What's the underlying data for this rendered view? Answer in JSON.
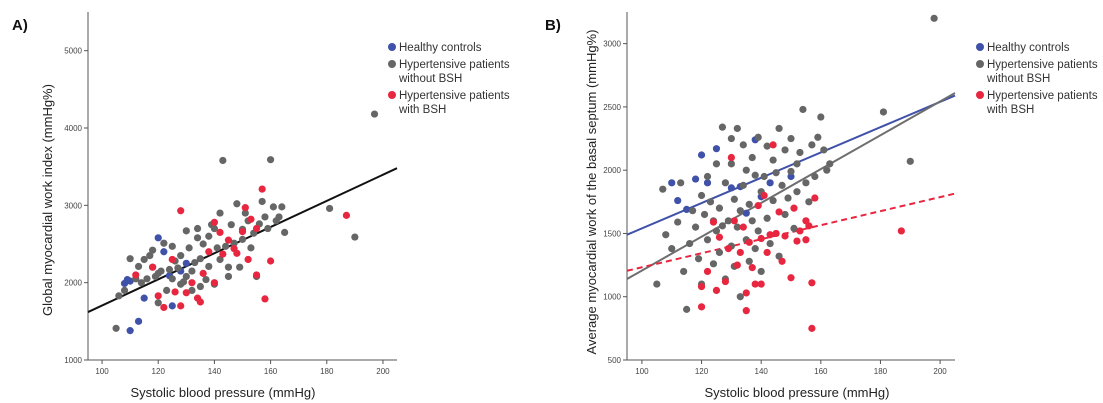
{
  "chart_data": [
    {
      "type": "scatter",
      "panel_label": "A)",
      "xlabel": "Systolic blood pressure (mmHg)",
      "ylabel": "Global myocardial work index (mmHg%)",
      "xlim": [
        95,
        205
      ],
      "ylim": [
        1000,
        5500
      ],
      "xticks": [
        100,
        120,
        140,
        160,
        180,
        200
      ],
      "yticks": [
        1000,
        2000,
        3000,
        4000,
        5000
      ],
      "grid": false,
      "legend_position": "top-right",
      "series": [
        {
          "name": "Healthy controls",
          "color": "#3f51a8",
          "points": [
            [
              108,
              1990
            ],
            [
              109,
              2040
            ],
            [
              110,
              2020
            ],
            [
              110,
              1380
            ],
            [
              113,
              1500
            ],
            [
              115,
              1800
            ],
            [
              118,
              2200
            ],
            [
              120,
              2580
            ],
            [
              122,
              2400
            ],
            [
              124,
              2090
            ],
            [
              125,
              1700
            ],
            [
              128,
              2150
            ],
            [
              130,
              2250
            ]
          ]
        },
        {
          "name": "Hypertensive patients without BSH",
          "color": "#666666",
          "points": [
            [
              105,
              1410
            ],
            [
              106,
              1830
            ],
            [
              108,
              1900
            ],
            [
              110,
              2310
            ],
            [
              112,
              2050
            ],
            [
              113,
              2210
            ],
            [
              114,
              2000
            ],
            [
              115,
              2300
            ],
            [
              116,
              2050
            ],
            [
              117,
              2350
            ],
            [
              118,
              2420
            ],
            [
              119,
              2080
            ],
            [
              120,
              2120
            ],
            [
              120,
              1740
            ],
            [
              121,
              2150
            ],
            [
              122,
              2510
            ],
            [
              123,
              1900
            ],
            [
              124,
              2170
            ],
            [
              125,
              2050
            ],
            [
              125,
              2470
            ],
            [
              126,
              2280
            ],
            [
              127,
              2190
            ],
            [
              128,
              2350
            ],
            [
              128,
              1980
            ],
            [
              129,
              2010
            ],
            [
              130,
              2080
            ],
            [
              130,
              2670
            ],
            [
              131,
              2450
            ],
            [
              132,
              2150
            ],
            [
              132,
              1900
            ],
            [
              133,
              2260
            ],
            [
              134,
              2700
            ],
            [
              134,
              2580
            ],
            [
              135,
              2310
            ],
            [
              135,
              1950
            ],
            [
              136,
              2500
            ],
            [
              137,
              2040
            ],
            [
              138,
              2210
            ],
            [
              138,
              2600
            ],
            [
              139,
              2750
            ],
            [
              140,
              1980
            ],
            [
              140,
              2700
            ],
            [
              141,
              2450
            ],
            [
              142,
              2300
            ],
            [
              142,
              2900
            ],
            [
              143,
              3580
            ],
            [
              144,
              2470
            ],
            [
              145,
              2080
            ],
            [
              145,
              2200
            ],
            [
              146,
              2750
            ],
            [
              147,
              2510
            ],
            [
              148,
              3020
            ],
            [
              149,
              2200
            ],
            [
              150,
              2560
            ],
            [
              150,
              2690
            ],
            [
              151,
              2900
            ],
            [
              152,
              2800
            ],
            [
              153,
              2450
            ],
            [
              154,
              2640
            ],
            [
              155,
              2080
            ],
            [
              156,
              2760
            ],
            [
              157,
              3050
            ],
            [
              158,
              2850
            ],
            [
              159,
              2700
            ],
            [
              160,
              3590
            ],
            [
              161,
              2980
            ],
            [
              162,
              2800
            ],
            [
              163,
              2850
            ],
            [
              164,
              2980
            ],
            [
              165,
              2650
            ],
            [
              181,
              2960
            ],
            [
              190,
              2590
            ],
            [
              197,
              4180
            ]
          ]
        },
        {
          "name": "Hypertensive patients with BSH",
          "color": "#e8263f",
          "points": [
            [
              112,
              2100
            ],
            [
              118,
              2200
            ],
            [
              120,
              1830
            ],
            [
              122,
              1680
            ],
            [
              125,
              2300
            ],
            [
              126,
              1880
            ],
            [
              128,
              1700
            ],
            [
              128,
              2930
            ],
            [
              130,
              1870
            ],
            [
              132,
              2000
            ],
            [
              134,
              1800
            ],
            [
              135,
              1750
            ],
            [
              136,
              2120
            ],
            [
              138,
              2400
            ],
            [
              140,
              2000
            ],
            [
              140,
              2780
            ],
            [
              142,
              2650
            ],
            [
              143,
              2370
            ],
            [
              145,
              2550
            ],
            [
              147,
              2440
            ],
            [
              148,
              2380
            ],
            [
              150,
              2660
            ],
            [
              151,
              2970
            ],
            [
              152,
              2300
            ],
            [
              153,
              2820
            ],
            [
              155,
              2100
            ],
            [
              155,
              2700
            ],
            [
              157,
              3210
            ],
            [
              158,
              1790
            ],
            [
              160,
              2280
            ],
            [
              187,
              2870
            ]
          ]
        }
      ],
      "regression_lines": [
        {
          "color": "#111111",
          "style": "solid",
          "x": [
            95,
            205
          ],
          "y": [
            1620,
            3480
          ]
        }
      ]
    },
    {
      "type": "scatter",
      "panel_label": "B)",
      "xlabel": "Systolic blood pressure (mmHg)",
      "ylabel": "Average myocardial work of the basal septum (mmHg%)",
      "xlim": [
        95,
        205
      ],
      "ylim": [
        500,
        3250
      ],
      "xticks": [
        100,
        120,
        140,
        160,
        180,
        200
      ],
      "yticks": [
        500,
        1000,
        1500,
        2000,
        2500,
        3000
      ],
      "grid": false,
      "legend_position": "top-right",
      "series": [
        {
          "name": "Healthy controls",
          "color": "#3f51a8",
          "points": [
            [
              110,
              1900
            ],
            [
              112,
              1760
            ],
            [
              115,
              1690
            ],
            [
              118,
              1930
            ],
            [
              120,
              2120
            ],
            [
              122,
              1900
            ],
            [
              125,
              2170
            ],
            [
              130,
              1860
            ],
            [
              133,
              1870
            ],
            [
              135,
              1660
            ],
            [
              138,
              2240
            ],
            [
              140,
              1790
            ],
            [
              143,
              1900
            ],
            [
              150,
              1950
            ]
          ]
        },
        {
          "name": "Hypertensive patients without BSH",
          "color": "#666666",
          "points": [
            [
              105,
              1100
            ],
            [
              107,
              1850
            ],
            [
              108,
              1490
            ],
            [
              110,
              1380
            ],
            [
              112,
              1590
            ],
            [
              113,
              1900
            ],
            [
              114,
              1200
            ],
            [
              115,
              900
            ],
            [
              116,
              1420
            ],
            [
              117,
              1680
            ],
            [
              118,
              1550
            ],
            [
              119,
              1300
            ],
            [
              120,
              1100
            ],
            [
              120,
              1800
            ],
            [
              121,
              1650
            ],
            [
              122,
              1450
            ],
            [
              122,
              1950
            ],
            [
              123,
              1750
            ],
            [
              124,
              1260
            ],
            [
              124,
              1600
            ],
            [
              125,
              1520
            ],
            [
              125,
              2050
            ],
            [
              126,
              1700
            ],
            [
              126,
              1350
            ],
            [
              127,
              1560
            ],
            [
              127,
              2340
            ],
            [
              128,
              1900
            ],
            [
              128,
              1140
            ],
            [
              129,
              1600
            ],
            [
              130,
              1400
            ],
            [
              130,
              2050
            ],
            [
              130,
              2250
            ],
            [
              131,
              1770
            ],
            [
              131,
              1240
            ],
            [
              132,
              1550
            ],
            [
              132,
              2330
            ],
            [
              133,
              1680
            ],
            [
              133,
              1000
            ],
            [
              134,
              1880
            ],
            [
              134,
              2200
            ],
            [
              135,
              1450
            ],
            [
              135,
              2000
            ],
            [
              136,
              1730
            ],
            [
              136,
              1280
            ],
            [
              137,
              2100
            ],
            [
              137,
              1600
            ],
            [
              138,
              1960
            ],
            [
              138,
              1380
            ],
            [
              139,
              1520
            ],
            [
              139,
              2260
            ],
            [
              140,
              1830
            ],
            [
              140,
              1200
            ],
            [
              141,
              1950
            ],
            [
              142,
              1620
            ],
            [
              142,
              2190
            ],
            [
              143,
              1420
            ],
            [
              144,
              2080
            ],
            [
              144,
              1760
            ],
            [
              145,
              1980
            ],
            [
              146,
              1320
            ],
            [
              146,
              2330
            ],
            [
              147,
              1880
            ],
            [
              148,
              1650
            ],
            [
              148,
              2160
            ],
            [
              149,
              1780
            ],
            [
              150,
              1990
            ],
            [
              150,
              2250
            ],
            [
              151,
              1540
            ],
            [
              152,
              1830
            ],
            [
              152,
              2050
            ],
            [
              153,
              2140
            ],
            [
              154,
              2480
            ],
            [
              155,
              1900
            ],
            [
              156,
              1750
            ],
            [
              157,
              2200
            ],
            [
              158,
              1950
            ],
            [
              159,
              2260
            ],
            [
              160,
              2420
            ],
            [
              161,
              2160
            ],
            [
              162,
              2000
            ],
            [
              163,
              2050
            ],
            [
              181,
              2460
            ],
            [
              190,
              2070
            ],
            [
              198,
              3200
            ]
          ]
        },
        {
          "name": "Hypertensive patients with BSH",
          "color": "#e8263f",
          "points": [
            [
              120,
              1080
            ],
            [
              120,
              920
            ],
            [
              122,
              1200
            ],
            [
              124,
              1590
            ],
            [
              125,
              1050
            ],
            [
              126,
              1470
            ],
            [
              128,
              1120
            ],
            [
              129,
              1380
            ],
            [
              130,
              2100
            ],
            [
              131,
              1600
            ],
            [
              132,
              1250
            ],
            [
              133,
              1350
            ],
            [
              134,
              1550
            ],
            [
              135,
              1030
            ],
            [
              135,
              890
            ],
            [
              136,
              1430
            ],
            [
              137,
              1230
            ],
            [
              138,
              1100
            ],
            [
              139,
              1720
            ],
            [
              140,
              1460
            ],
            [
              140,
              1100
            ],
            [
              141,
              1800
            ],
            [
              142,
              1350
            ],
            [
              143,
              1490
            ],
            [
              144,
              2200
            ],
            [
              145,
              1500
            ],
            [
              146,
              1670
            ],
            [
              147,
              1280
            ],
            [
              148,
              1480
            ],
            [
              150,
              1150
            ],
            [
              151,
              1700
            ],
            [
              152,
              1440
            ],
            [
              153,
              1520
            ],
            [
              155,
              1600
            ],
            [
              155,
              1450
            ],
            [
              156,
              1560
            ],
            [
              157,
              750
            ],
            [
              157,
              1110
            ],
            [
              158,
              1780
            ],
            [
              187,
              1520
            ]
          ]
        }
      ],
      "regression_lines": [
        {
          "color": "#3f51a8",
          "style": "solid",
          "x": [
            95,
            205
          ],
          "y": [
            1490,
            2590
          ]
        },
        {
          "color": "#6e6e6e",
          "style": "solid",
          "x": [
            95,
            205
          ],
          "y": [
            1140,
            2610
          ]
        },
        {
          "color": "#e8263f",
          "style": "dashed",
          "x": [
            95,
            205
          ],
          "y": [
            1205,
            1815
          ]
        }
      ]
    }
  ]
}
